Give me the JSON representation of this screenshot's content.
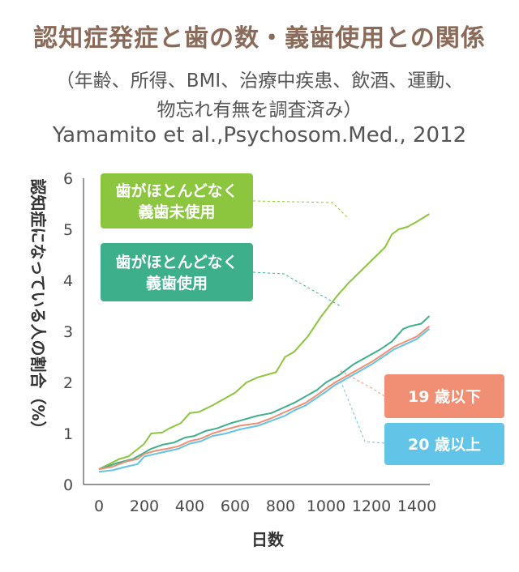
{
  "header": {
    "title": "認知症発症と歯の数・義歯使用との関係",
    "subtitle_line1": "（年齢、所得、BMI、治療中疾患、飲酒、運動、",
    "subtitle_line2": "物忘れ有無を調査済み）",
    "citation": "Yamamito et al.,Psychosom.Med.,  2012"
  },
  "chart_data": {
    "type": "line",
    "title": "認知症発症と歯の数・義歯使用との関係",
    "xlabel": "日数",
    "ylabel": "認知症になっている人の割合（%）",
    "xlim": [
      0,
      1460
    ],
    "ylim": [
      0,
      6
    ],
    "x_ticks": [
      "0",
      "200",
      "400",
      "600",
      "800",
      "1000",
      "1200",
      "1400"
    ],
    "y_ticks": [
      "0",
      "1",
      "2",
      "3",
      "4",
      "5",
      "6"
    ],
    "grid": false,
    "series": [
      {
        "name": "歯がほとんどなく 義歯未使用",
        "label_lines": [
          "歯がほとんどなく",
          "義歯未使用"
        ],
        "color": "#8cc63f",
        "points": [
          [
            0,
            0.3
          ],
          [
            90,
            0.5
          ],
          [
            130,
            0.55
          ],
          [
            200,
            0.8
          ],
          [
            230,
            1.0
          ],
          [
            280,
            1.02
          ],
          [
            310,
            1.1
          ],
          [
            360,
            1.2
          ],
          [
            400,
            1.4
          ],
          [
            440,
            1.42
          ],
          [
            500,
            1.55
          ],
          [
            600,
            1.8
          ],
          [
            650,
            2.0
          ],
          [
            700,
            2.1
          ],
          [
            780,
            2.2
          ],
          [
            800,
            2.35
          ],
          [
            820,
            2.5
          ],
          [
            860,
            2.6
          ],
          [
            920,
            2.9
          ],
          [
            980,
            3.3
          ],
          [
            1050,
            3.7
          ],
          [
            1100,
            3.95
          ],
          [
            1180,
            4.3
          ],
          [
            1260,
            4.65
          ],
          [
            1290,
            4.9
          ],
          [
            1320,
            5.0
          ],
          [
            1360,
            5.05
          ],
          [
            1400,
            5.15
          ],
          [
            1455,
            5.3
          ]
        ]
      },
      {
        "name": "歯がほとんどなく 義歯使用",
        "label_lines": [
          "歯がほとんどなく",
          "義歯使用"
        ],
        "color": "#3eaf8b",
        "points": [
          [
            0,
            0.3
          ],
          [
            80,
            0.42
          ],
          [
            150,
            0.5
          ],
          [
            190,
            0.6
          ],
          [
            230,
            0.7
          ],
          [
            280,
            0.78
          ],
          [
            330,
            0.82
          ],
          [
            380,
            0.92
          ],
          [
            420,
            0.95
          ],
          [
            470,
            1.05
          ],
          [
            520,
            1.1
          ],
          [
            580,
            1.2
          ],
          [
            620,
            1.25
          ],
          [
            700,
            1.35
          ],
          [
            760,
            1.4
          ],
          [
            810,
            1.5
          ],
          [
            860,
            1.6
          ],
          [
            900,
            1.7
          ],
          [
            960,
            1.85
          ],
          [
            1000,
            2.0
          ],
          [
            1060,
            2.15
          ],
          [
            1120,
            2.35
          ],
          [
            1180,
            2.5
          ],
          [
            1240,
            2.65
          ],
          [
            1290,
            2.8
          ],
          [
            1340,
            3.05
          ],
          [
            1370,
            3.1
          ],
          [
            1420,
            3.15
          ],
          [
            1455,
            3.3
          ]
        ]
      },
      {
        "name": "19 歳以下",
        "label_lines": [
          "19 歳以下"
        ],
        "color": "#f08f74",
        "points": [
          [
            0,
            0.3
          ],
          [
            60,
            0.35
          ],
          [
            120,
            0.45
          ],
          [
            170,
            0.5
          ],
          [
            200,
            0.6
          ],
          [
            250,
            0.66
          ],
          [
            300,
            0.7
          ],
          [
            350,
            0.75
          ],
          [
            400,
            0.85
          ],
          [
            450,
            0.9
          ],
          [
            500,
            1.0
          ],
          [
            560,
            1.08
          ],
          [
            620,
            1.15
          ],
          [
            700,
            1.2
          ],
          [
            760,
            1.3
          ],
          [
            820,
            1.42
          ],
          [
            860,
            1.5
          ],
          [
            910,
            1.6
          ],
          [
            960,
            1.75
          ],
          [
            1000,
            1.88
          ],
          [
            1040,
            2.0
          ],
          [
            1080,
            2.1
          ],
          [
            1120,
            2.2
          ],
          [
            1160,
            2.3
          ],
          [
            1200,
            2.4
          ],
          [
            1250,
            2.55
          ],
          [
            1300,
            2.7
          ],
          [
            1350,
            2.8
          ],
          [
            1400,
            2.9
          ],
          [
            1455,
            3.1
          ]
        ]
      },
      {
        "name": "20 歳以上",
        "label_lines": [
          "20 歳以上"
        ],
        "color": "#62c4e6",
        "points": [
          [
            0,
            0.25
          ],
          [
            60,
            0.28
          ],
          [
            120,
            0.35
          ],
          [
            170,
            0.4
          ],
          [
            200,
            0.55
          ],
          [
            250,
            0.6
          ],
          [
            300,
            0.65
          ],
          [
            350,
            0.7
          ],
          [
            400,
            0.8
          ],
          [
            450,
            0.85
          ],
          [
            500,
            0.95
          ],
          [
            560,
            1.0
          ],
          [
            620,
            1.08
          ],
          [
            700,
            1.15
          ],
          [
            760,
            1.25
          ],
          [
            820,
            1.35
          ],
          [
            860,
            1.45
          ],
          [
            910,
            1.55
          ],
          [
            960,
            1.7
          ],
          [
            1000,
            1.82
          ],
          [
            1040,
            1.95
          ],
          [
            1080,
            2.05
          ],
          [
            1120,
            2.15
          ],
          [
            1160,
            2.25
          ],
          [
            1200,
            2.35
          ],
          [
            1250,
            2.5
          ],
          [
            1300,
            2.65
          ],
          [
            1350,
            2.75
          ],
          [
            1400,
            2.85
          ],
          [
            1455,
            3.05
          ]
        ]
      }
    ]
  }
}
